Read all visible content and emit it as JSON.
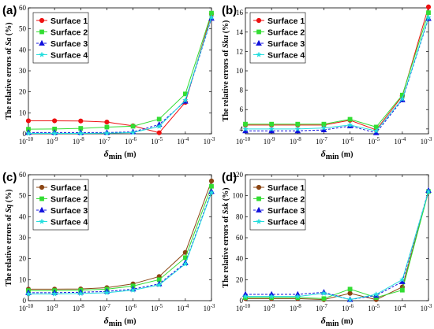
{
  "chart_data": [
    {
      "type": "line",
      "panel_label": "(a)",
      "x": [
        "1e-10",
        "1e-9",
        "1e-8",
        "1e-7",
        "1e-6",
        "1e-5",
        "1e-4",
        "1e-3"
      ],
      "xtick_labels": [
        "10-10",
        "10-9",
        "10-8",
        "10-7",
        "10-6",
        "10-5",
        "10-4",
        "10-3"
      ],
      "xscale": "log",
      "xlabel": "δmin (m)",
      "ylabel_prefix": "The relative errors of ",
      "ylabel_symbol": "Sa",
      "ylabel_suffix": " (%)",
      "ylim": [
        0,
        60
      ],
      "yticks": [
        0,
        10,
        20,
        30,
        40,
        50,
        60
      ],
      "legend_position": "top-left",
      "series": [
        {
          "name": "Surface 1",
          "color": "#ee1111",
          "marker": "circle",
          "dash": "solid",
          "values": [
            6.2,
            6.2,
            6.1,
            5.6,
            3.8,
            0.5,
            15.0,
            57.0
          ]
        },
        {
          "name": "Surface 2",
          "color": "#33dd33",
          "marker": "square",
          "dash": "solid",
          "values": [
            2.2,
            2.3,
            2.6,
            3.2,
            3.6,
            7.0,
            19.0,
            57.5
          ]
        },
        {
          "name": "Surface 3",
          "color": "#1111dd",
          "marker": "triangle",
          "dash": "dashed",
          "values": [
            0.6,
            0.6,
            0.6,
            0.6,
            0.9,
            4.4,
            15.5,
            55.0
          ]
        },
        {
          "name": "Surface 4",
          "color": "#22dddd",
          "marker": "star",
          "dash": "solid",
          "values": [
            0.2,
            0.2,
            0.2,
            0.3,
            0.6,
            3.5,
            16.0,
            55.5
          ]
        }
      ]
    },
    {
      "type": "line",
      "panel_label": "(b)",
      "x": [
        "1e-10",
        "1e-9",
        "1e-8",
        "1e-7",
        "1e-6",
        "1e-5",
        "1e-4",
        "1e-3"
      ],
      "xtick_labels": [
        "10-10",
        "10-9",
        "10-8",
        "10-7",
        "10-6",
        "10-5",
        "10-4",
        "10-3"
      ],
      "xscale": "log",
      "xlabel": "δmin (m)",
      "ylabel_prefix": "The relative errors of ",
      "ylabel_symbol": "Sku",
      "ylabel_suffix": " (%)",
      "ylim": [
        3.5,
        16.5
      ],
      "yticks": [
        4,
        6,
        8,
        10,
        12,
        14,
        16
      ],
      "legend_position": "top-left",
      "series": [
        {
          "name": "Surface 1",
          "color": "#ee1111",
          "marker": "circle",
          "dash": "solid",
          "values": [
            4.4,
            4.4,
            4.4,
            4.4,
            4.9,
            3.9,
            7.4,
            16.6
          ]
        },
        {
          "name": "Surface 2",
          "color": "#33dd33",
          "marker": "square",
          "dash": "solid",
          "values": [
            4.5,
            4.5,
            4.5,
            4.5,
            5.0,
            4.2,
            7.5,
            16.0
          ]
        },
        {
          "name": "Surface 3",
          "color": "#1111dd",
          "marker": "triangle",
          "dash": "dashed",
          "values": [
            3.8,
            3.8,
            3.8,
            3.9,
            4.3,
            3.6,
            7.0,
            15.4
          ]
        },
        {
          "name": "Surface 4",
          "color": "#22dddd",
          "marker": "star",
          "dash": "solid",
          "values": [
            4.0,
            4.0,
            4.0,
            4.1,
            4.4,
            3.8,
            7.1,
            15.5
          ]
        }
      ]
    },
    {
      "type": "line",
      "panel_label": "(c)",
      "x": [
        "1e-10",
        "1e-9",
        "1e-8",
        "1e-7",
        "1e-6",
        "1e-5",
        "1e-4",
        "1e-3"
      ],
      "xtick_labels": [
        "10-10",
        "10-9",
        "10-8",
        "10-7",
        "10-6",
        "10-5",
        "10-4",
        "10-3"
      ],
      "xscale": "log",
      "xlabel": "δmin (m)",
      "ylabel_prefix": "The relative errors of ",
      "ylabel_symbol": "Sq",
      "ylabel_suffix": " (%)",
      "ylim": [
        0,
        60
      ],
      "yticks": [
        0,
        10,
        20,
        30,
        40,
        50,
        60
      ],
      "legend_position": "top-left",
      "series": [
        {
          "name": "Surface 1",
          "color": "#8b4513",
          "marker": "circle",
          "dash": "solid",
          "values": [
            5.5,
            5.5,
            5.6,
            6.2,
            8.0,
            11.5,
            23.0,
            57.0
          ]
        },
        {
          "name": "Surface 2",
          "color": "#33dd33",
          "marker": "square",
          "dash": "solid",
          "values": [
            4.8,
            4.8,
            5.0,
            5.5,
            7.0,
            10.0,
            20.5,
            54.5
          ]
        },
        {
          "name": "Surface 3",
          "color": "#1111dd",
          "marker": "triangle",
          "dash": "dashed",
          "values": [
            3.8,
            3.8,
            4.0,
            4.4,
            5.5,
            8.0,
            18.0,
            52.0
          ]
        },
        {
          "name": "Surface 4",
          "color": "#22dddd",
          "marker": "star",
          "dash": "solid",
          "values": [
            3.2,
            3.2,
            3.4,
            3.8,
            5.0,
            7.5,
            17.5,
            51.5
          ]
        }
      ]
    },
    {
      "type": "line",
      "panel_label": "(d)",
      "x": [
        "1e-10",
        "1e-9",
        "1e-8",
        "1e-7",
        "1e-6",
        "1e-5",
        "1e-4",
        "1e-3"
      ],
      "xtick_labels": [
        "10-10",
        "10-9",
        "10-8",
        "10-7",
        "10-6",
        "10-5",
        "10-4",
        "10-3"
      ],
      "xscale": "log",
      "xlabel": "δmin (m)",
      "ylabel_prefix": "The relative errors of ",
      "ylabel_symbol": "Ssk",
      "ylabel_suffix": " (%)",
      "ylim": [
        0,
        120
      ],
      "yticks": [
        0,
        20,
        40,
        60,
        80,
        100,
        120
      ],
      "legend_position": "top-left",
      "series": [
        {
          "name": "Surface 1",
          "color": "#8b4513",
          "marker": "circle",
          "dash": "solid",
          "values": [
            2.0,
            2.0,
            2.0,
            1.0,
            7.0,
            1.0,
            13.0,
            104.0
          ]
        },
        {
          "name": "Surface 2",
          "color": "#33dd33",
          "marker": "square",
          "dash": "solid",
          "values": [
            3.0,
            3.0,
            3.0,
            2.0,
            11.0,
            3.0,
            10.0,
            104.0
          ]
        },
        {
          "name": "Surface 3",
          "color": "#1111dd",
          "marker": "triangle",
          "dash": "dashed",
          "values": [
            6.0,
            6.0,
            6.0,
            8.0,
            1.0,
            5.0,
            18.0,
            105.0
          ]
        },
        {
          "name": "Surface 4",
          "color": "#22dddd",
          "marker": "star",
          "dash": "solid",
          "values": [
            4.0,
            4.0,
            4.0,
            7.0,
            1.0,
            6.0,
            20.0,
            104.0
          ]
        }
      ]
    }
  ]
}
